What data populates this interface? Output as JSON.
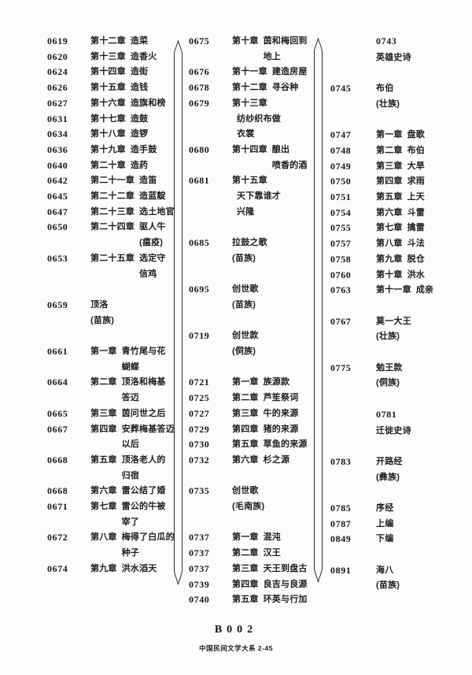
{
  "page": {
    "background": "#fcfcfa",
    "ink": "#1d1d1d"
  },
  "footer": {
    "code": "B002",
    "series": "中国民间文学大系 2-45"
  },
  "columns": [
    {
      "rows": [
        {
          "type": "ch",
          "n": "0619",
          "c": "第十二章",
          "t": "造菜"
        },
        {
          "type": "ch",
          "n": "0620",
          "c": "第十三章",
          "t": "造香火"
        },
        {
          "type": "ch",
          "n": "0624",
          "c": "第十四章",
          "t": "造街"
        },
        {
          "type": "ch",
          "n": "0626",
          "c": "第十五章",
          "t": "造钱"
        },
        {
          "type": "ch",
          "n": "0627",
          "c": "第十六章",
          "t": "造旗和榜"
        },
        {
          "type": "ch",
          "n": "0631",
          "c": "第十七章",
          "t": "造鼓"
        },
        {
          "type": "ch",
          "n": "0634",
          "c": "第十八章",
          "t": "造锣"
        },
        {
          "type": "ch",
          "n": "0636",
          "c": "第十九章",
          "t": "造手鼓"
        },
        {
          "type": "ch",
          "n": "0640",
          "c": "第二十章",
          "t": "造药"
        },
        {
          "type": "ch",
          "n": "0642",
          "c": "第二十一章",
          "t": "造笛"
        },
        {
          "type": "ch",
          "n": "0645",
          "c": "第二十二章",
          "t": "造蓝靛"
        },
        {
          "type": "ch",
          "n": "0647",
          "c": "第二十三章",
          "t": "选土地官"
        },
        {
          "type": "ch",
          "n": "0650",
          "c": "第二十四章",
          "t": "驱人牛\n(瘟疫)"
        },
        {
          "type": "ch",
          "n": "0653",
          "c": "第二十五章",
          "t": "选定守\n信鸡"
        },
        {
          "type": "sp"
        },
        {
          "type": "sec",
          "n": "0659",
          "h": "顶洛",
          "e": "(苗族)"
        },
        {
          "type": "sp"
        },
        {
          "type": "ch",
          "n": "0661",
          "c": "第一章",
          "t": "青竹尾与花\n蝴蝶"
        },
        {
          "type": "ch",
          "n": "0664",
          "c": "第二章",
          "t": "顶洛和梅基\n答迈"
        },
        {
          "type": "ch",
          "n": "0665",
          "c": "第三章",
          "t": "茵问世之后"
        },
        {
          "type": "ch",
          "n": "0667",
          "c": "第四章",
          "t": "安葬梅基答迈\n以后"
        },
        {
          "type": "ch",
          "n": "0668",
          "c": "第五章",
          "t": "顶洛老人的\n归宿"
        },
        {
          "type": "ch",
          "n": "0668",
          "c": "第六章",
          "t": "雷公结了婚"
        },
        {
          "type": "ch",
          "n": "0671",
          "c": "第七章",
          "t": "雷公的牛被\n宰了"
        },
        {
          "type": "ch",
          "n": "0672",
          "c": "第八章",
          "t": "梅得了白瓜的\n种子"
        },
        {
          "type": "ch",
          "n": "0674",
          "c": "第九章",
          "t": "洪水滔天"
        }
      ]
    },
    {
      "rows": [
        {
          "type": "ch",
          "n": "0675",
          "c": "第十章",
          "t": "茵和梅回到\n地上"
        },
        {
          "type": "ch",
          "n": "0676",
          "c": "第十一章",
          "t": "建造房屋"
        },
        {
          "type": "ch",
          "n": "0678",
          "c": "第十二章",
          "t": "寻谷种"
        },
        {
          "type": "ch",
          "n": "0679",
          "c": "第十三章",
          "t": "纺纱织布做\n衣裳"
        },
        {
          "type": "ch",
          "n": "0680",
          "c": "第十四章",
          "t": "酿出\n喷香的酒"
        },
        {
          "type": "ch",
          "n": "0681",
          "c": "第十五章",
          "t": "天下靠谁才\n兴隆"
        },
        {
          "type": "sp"
        },
        {
          "type": "sec",
          "n": "0685",
          "h": "拉鼓之歌",
          "e": "(苗族)"
        },
        {
          "type": "sp"
        },
        {
          "type": "sec",
          "n": "0695",
          "h": "创世歌",
          "e": "(苗族)"
        },
        {
          "type": "sp"
        },
        {
          "type": "sec",
          "n": "0719",
          "h": "创世款",
          "e": "(侗族)"
        },
        {
          "type": "sp"
        },
        {
          "type": "ch",
          "n": "0721",
          "c": "第一章",
          "t": "族源款"
        },
        {
          "type": "ch",
          "n": "0725",
          "c": "第二章",
          "t": "芦笙祭词"
        },
        {
          "type": "ch",
          "n": "0727",
          "c": "第三章",
          "t": "牛的来源"
        },
        {
          "type": "ch",
          "n": "0729",
          "c": "第四章",
          "t": "猪的来源"
        },
        {
          "type": "ch",
          "n": "0730",
          "c": "第五章",
          "t": "草鱼的来源"
        },
        {
          "type": "ch",
          "n": "0732",
          "c": "第六章",
          "t": "杉之源"
        },
        {
          "type": "sp"
        },
        {
          "type": "sec",
          "n": "0735",
          "h": "创世歌",
          "e": "(毛南族)"
        },
        {
          "type": "sp"
        },
        {
          "type": "ch",
          "n": "0737",
          "c": "第一章",
          "t": "混沌"
        },
        {
          "type": "ch",
          "n": "0737",
          "c": "第二章",
          "t": "汉王"
        },
        {
          "type": "ch",
          "n": "0737",
          "c": "第三章",
          "t": "天王到盘古"
        },
        {
          "type": "ch",
          "n": "0739",
          "c": "第四章",
          "t": "良吉与良源"
        },
        {
          "type": "ch",
          "n": "0740",
          "c": "第五章",
          "t": "环英与行加"
        }
      ]
    },
    {
      "rows": [
        {
          "type": "cat",
          "n": "0743",
          "h": "英雄史诗"
        },
        {
          "type": "sp"
        },
        {
          "type": "sec",
          "n": "0745",
          "h": "布伯",
          "e": "(壮族)"
        },
        {
          "type": "sp"
        },
        {
          "type": "ch",
          "n": "0747",
          "c": "第一章",
          "t": "盘歌"
        },
        {
          "type": "ch",
          "n": "0748",
          "c": "第二章",
          "t": "布伯"
        },
        {
          "type": "ch",
          "n": "0749",
          "c": "第三章",
          "t": "大旱"
        },
        {
          "type": "ch",
          "n": "0750",
          "c": "第四章",
          "t": "求雨"
        },
        {
          "type": "ch",
          "n": "0751",
          "c": "第五章",
          "t": "上天"
        },
        {
          "type": "ch",
          "n": "0754",
          "c": "第六章",
          "t": "斗雷"
        },
        {
          "type": "ch",
          "n": "0755",
          "c": "第七章",
          "t": "擒雷"
        },
        {
          "type": "ch",
          "n": "0757",
          "c": "第八章",
          "t": "斗法"
        },
        {
          "type": "ch",
          "n": "0758",
          "c": "第九章",
          "t": "脱仓"
        },
        {
          "type": "ch",
          "n": "0760",
          "c": "第十章",
          "t": "洪水"
        },
        {
          "type": "ch",
          "n": "0763",
          "c": "第十一章",
          "t": "成亲"
        },
        {
          "type": "sp"
        },
        {
          "type": "sec",
          "n": "0767",
          "h": "莫一大王",
          "e": "(壮族)"
        },
        {
          "type": "sp"
        },
        {
          "type": "sec",
          "n": "0775",
          "h": "勉王款",
          "e": "(侗族)"
        },
        {
          "type": "sp"
        },
        {
          "type": "cat",
          "n": "0781",
          "h": "迁徙史诗"
        },
        {
          "type": "sp"
        },
        {
          "type": "sec",
          "n": "0783",
          "h": "开路经",
          "e": "(彝族)"
        },
        {
          "type": "sp"
        },
        {
          "type": "pl",
          "n": "0785",
          "t": "序经"
        },
        {
          "type": "pl",
          "n": "0787",
          "t": "上编"
        },
        {
          "type": "pl",
          "n": "0849",
          "t": "下编"
        },
        {
          "type": "sp"
        },
        {
          "type": "sec",
          "n": "0891",
          "h": "海八",
          "e": "(苗族)"
        }
      ]
    }
  ]
}
